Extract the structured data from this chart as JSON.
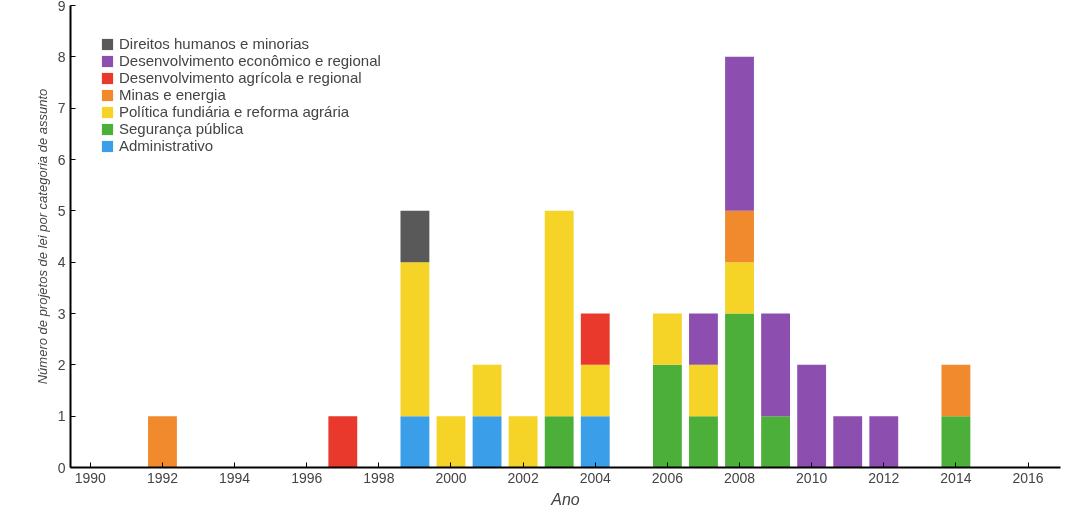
{
  "chart_data": {
    "type": "bar",
    "stacked": true,
    "xlabel": "Ano",
    "ylabel": "Número de projetos de lei por categoria de assunto",
    "x": [
      1992,
      1997,
      1999,
      2000,
      2001,
      2002,
      2003,
      2004,
      2006,
      2007,
      2008,
      2009,
      2010,
      2011,
      2012,
      2014
    ],
    "series": [
      {
        "name": "Administrativo",
        "color": "#3a9ee8",
        "values": [
          null,
          null,
          1,
          null,
          1,
          null,
          null,
          1,
          null,
          null,
          null,
          null,
          null,
          null,
          null,
          null
        ]
      },
      {
        "name": "Segurança pública",
        "color": "#4caf3a",
        "values": [
          null,
          null,
          null,
          null,
          null,
          null,
          1,
          null,
          2,
          1,
          3,
          1,
          null,
          null,
          null,
          1
        ]
      },
      {
        "name": "Política fundiária e reforma agrária",
        "color": "#f5d327",
        "values": [
          null,
          null,
          3,
          1,
          1,
          1,
          4,
          1,
          1,
          1,
          1,
          null,
          null,
          null,
          null,
          null
        ]
      },
      {
        "name": "Minas e energia",
        "color": "#f08a2c",
        "values": [
          1,
          null,
          null,
          null,
          null,
          null,
          null,
          null,
          null,
          null,
          1,
          null,
          null,
          null,
          null,
          1
        ]
      },
      {
        "name": "Desenvolvimento agrícola e regional",
        "color": "#e8392c",
        "values": [
          null,
          1,
          null,
          null,
          null,
          null,
          null,
          1,
          null,
          null,
          null,
          null,
          null,
          null,
          null,
          null
        ]
      },
      {
        "name": "Desenvolvimento econômico e regional",
        "color": "#8c4fb0",
        "values": [
          null,
          null,
          null,
          null,
          null,
          null,
          null,
          null,
          null,
          1,
          3,
          2,
          2,
          1,
          1,
          null
        ]
      },
      {
        "name": "Direitos humanos e minorias",
        "color": "#595959",
        "values": [
          null,
          null,
          1,
          null,
          null,
          null,
          null,
          null,
          null,
          null,
          null,
          null,
          null,
          null,
          null,
          null
        ]
      }
    ],
    "xlim": [
      1989.45,
      2016.9
    ],
    "xticks": [
      1990,
      1992,
      1994,
      1996,
      1998,
      2000,
      2002,
      2004,
      2006,
      2008,
      2010,
      2012,
      2014,
      2016
    ],
    "ylim": [
      0,
      9
    ],
    "yticks": [
      0,
      1,
      2,
      3,
      4,
      5,
      6,
      7,
      8,
      9
    ],
    "grid": false,
    "legend": "top left"
  }
}
